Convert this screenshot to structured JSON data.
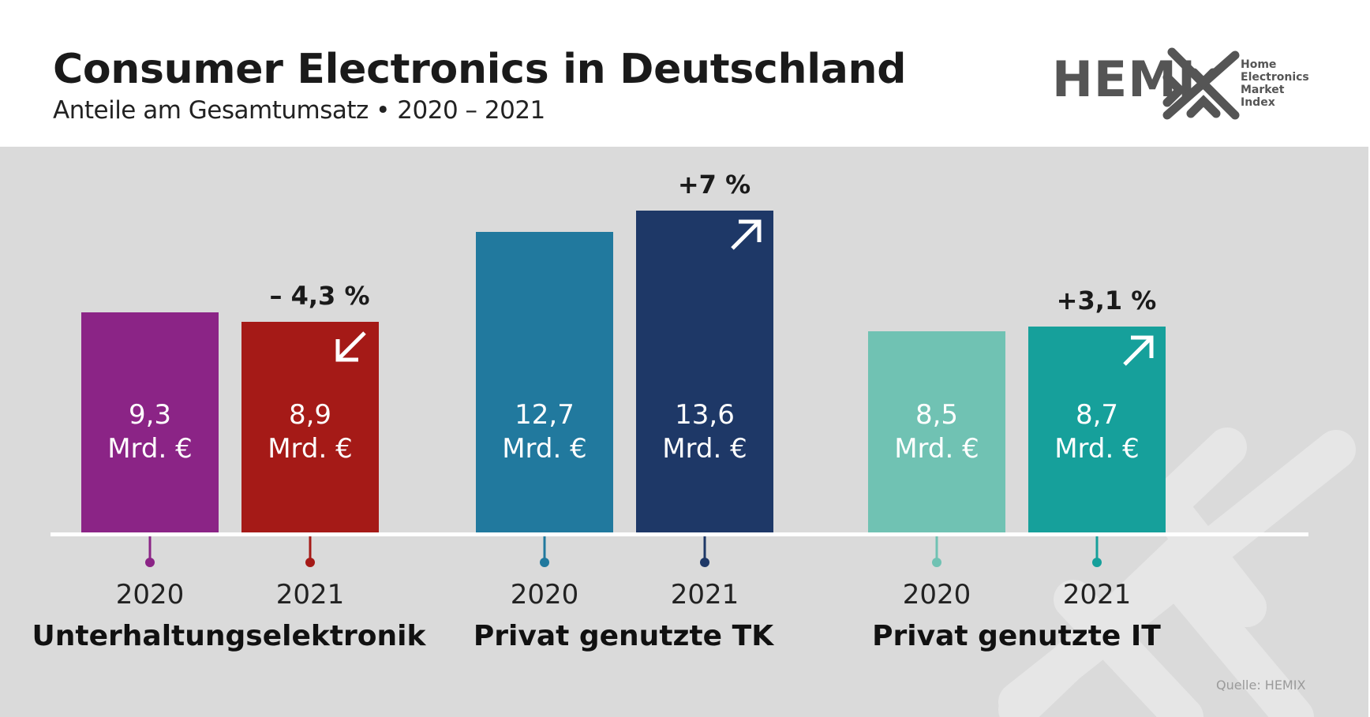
{
  "header": {
    "title": "Consumer Electronics in Deutschland",
    "subtitle": "Anteile am Gesamtumsatz • 2020 – 2021"
  },
  "logo": {
    "word": "HEMI",
    "icon": "hemix-x-mark-icon",
    "sub_lines": [
      "Home",
      "Electronics",
      "Market Index"
    ]
  },
  "source": "Quelle: HEMIX",
  "colors": {
    "background_panel": "#dadada",
    "text_dark": "#1a1a1a",
    "watermark": "#e6e6e6"
  },
  "chart_data": {
    "type": "bar",
    "title": "Consumer Electronics in Deutschland",
    "subtitle": "Anteile am Gesamtumsatz • 2020 – 2021",
    "unit": "Mrd. €",
    "xlabel": "",
    "ylabel": "",
    "ylim": [
      0,
      15
    ],
    "grid": false,
    "legend": "none",
    "groups": [
      {
        "category": "Unterhaltungselektronik",
        "change_label": "– 4,3 %",
        "change_direction": "down",
        "bars": [
          {
            "year": "2020",
            "value": 9.3,
            "value_label": "9,3",
            "unit_label": "Mrd. €",
            "color": "#8b2486"
          },
          {
            "year": "2021",
            "value": 8.9,
            "value_label": "8,9",
            "unit_label": "Mrd. €",
            "color": "#a51a17"
          }
        ]
      },
      {
        "category": "Privat genutzte TK",
        "change_label": "+7 %",
        "change_direction": "up",
        "bars": [
          {
            "year": "2020",
            "value": 12.7,
            "value_label": "12,7",
            "unit_label": "Mrd. €",
            "color": "#21799e"
          },
          {
            "year": "2021",
            "value": 13.6,
            "value_label": "13,6",
            "unit_label": "Mrd. €",
            "color": "#1e3867"
          }
        ]
      },
      {
        "category": "Privat genutzte IT",
        "change_label": "+3,1 %",
        "change_direction": "up",
        "bars": [
          {
            "year": "2020",
            "value": 8.5,
            "value_label": "8,5",
            "unit_label": "Mrd. €",
            "color": "#70c2b3"
          },
          {
            "year": "2021",
            "value": 8.7,
            "value_label": "8,7",
            "unit_label": "Mrd. €",
            "color": "#16a09b"
          }
        ]
      }
    ]
  }
}
